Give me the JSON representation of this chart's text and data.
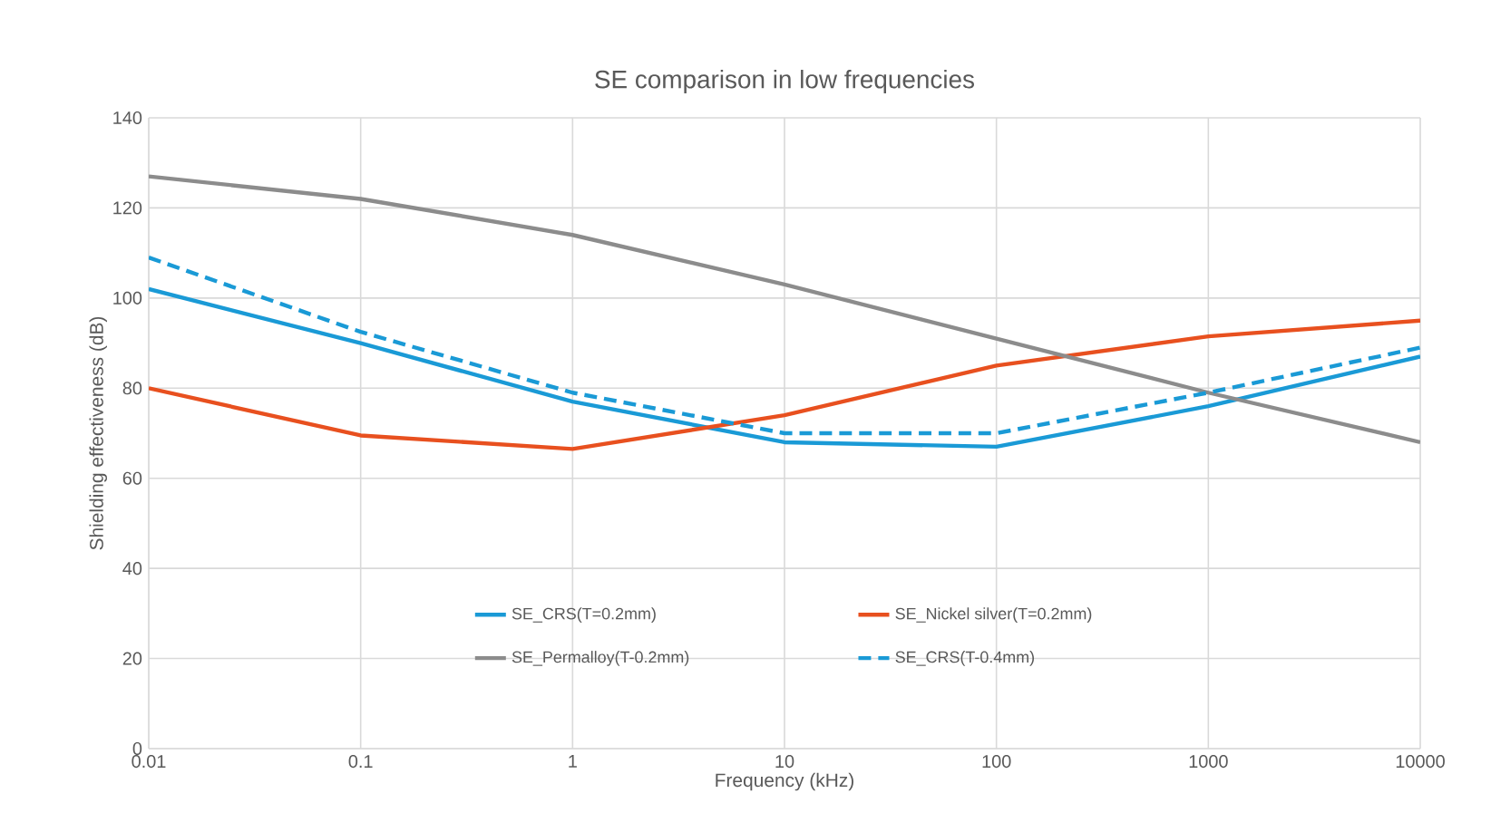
{
  "chart_data": {
    "type": "line",
    "title": "SE comparison in low frequencies",
    "xlabel": "Frequency (kHz)",
    "ylabel": "Shielding effectiveness (dB)",
    "x": [
      0.01,
      0.1,
      1,
      10,
      100,
      1000,
      10000
    ],
    "series": [
      {
        "name": "SE_CRS(T=0.2mm)",
        "color": "#1a9ad6",
        "values": [
          102,
          90,
          77,
          68,
          67,
          76,
          87
        ]
      },
      {
        "name": "SE_Nickel silver(T=0.2mm)",
        "color": "#e8501f",
        "values": [
          80,
          69.5,
          66.5,
          74,
          85,
          91.5,
          95
        ]
      },
      {
        "name": "SE_Permalloy(T-0.2mm)",
        "color": "#8c8c8c",
        "values": [
          127,
          122,
          114,
          103,
          91,
          79,
          68
        ]
      },
      {
        "name": "SE_CRS(T-0.4mm)",
        "color": "#1a9ad6",
        "values": [
          109,
          92.5,
          79,
          70,
          70,
          79,
          89
        ],
        "line_style": "dashed"
      }
    ],
    "log": "x",
    "xlim": [
      0.01,
      10000
    ],
    "xticks": [
      0.01,
      0.1,
      1,
      10,
      100,
      1000,
      10000
    ],
    "ylim": [
      0,
      140
    ],
    "yticks": [
      0,
      20,
      40,
      60,
      80,
      100,
      120,
      140
    ],
    "grid": true,
    "legend": "bottom",
    "marker": "none",
    "line_style": "solid"
  }
}
